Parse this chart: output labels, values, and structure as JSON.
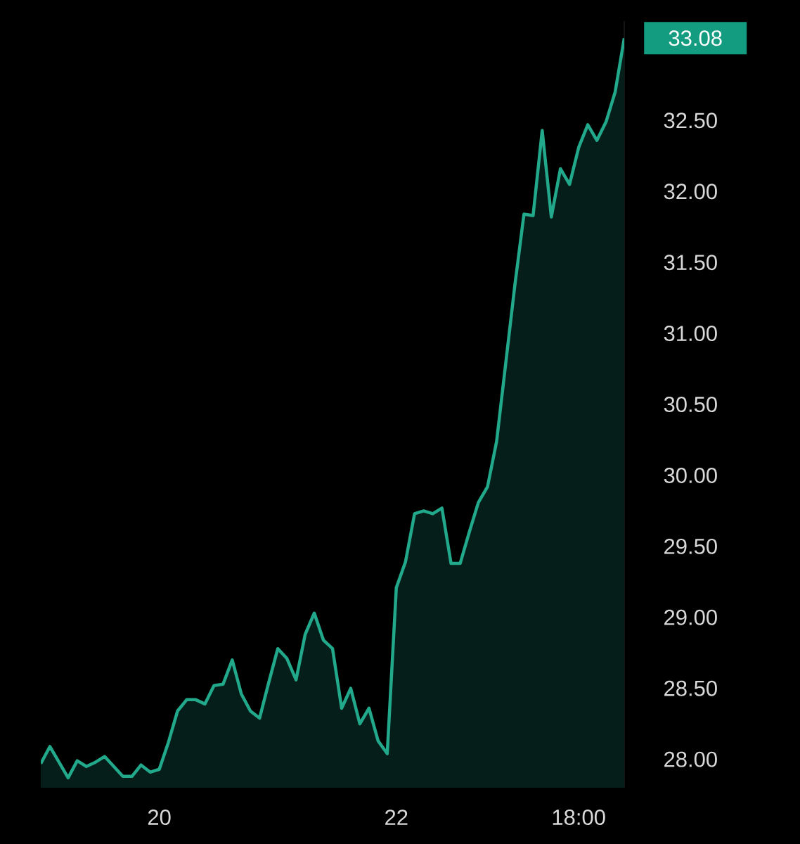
{
  "chart_data": {
    "type": "area",
    "categories": [
      null,
      null,
      null,
      null,
      null,
      null,
      null,
      null,
      null,
      null,
      null,
      null,
      null,
      "20",
      null,
      null,
      null,
      null,
      null,
      null,
      null,
      null,
      null,
      null,
      null,
      null,
      null,
      null,
      null,
      null,
      null,
      null,
      null,
      null,
      null,
      null,
      null,
      null,
      null,
      "22",
      null,
      null,
      null,
      null,
      null,
      null,
      null,
      null,
      null,
      null,
      null,
      null,
      null,
      null,
      null,
      null,
      null,
      null,
      null,
      "18:00",
      null,
      null,
      null,
      null,
      null
    ],
    "series": [
      {
        "color": "#22a88a",
        "values": [
          27.97,
          28.09,
          27.98,
          27.87,
          27.99,
          27.95,
          27.98,
          28.02,
          27.95,
          27.88,
          27.88,
          27.96,
          27.91,
          27.93,
          28.12,
          28.34,
          28.42,
          28.42,
          28.39,
          28.52,
          28.53,
          28.7,
          28.46,
          28.34,
          28.29,
          28.54,
          28.78,
          28.71,
          28.56,
          28.88,
          29.03,
          28.84,
          28.78,
          28.36,
          28.5,
          28.25,
          28.36,
          28.13,
          28.04,
          29.21,
          29.39,
          29.73,
          29.75,
          29.73,
          29.77,
          29.38,
          29.38,
          29.6,
          29.81,
          29.92,
          30.24,
          30.79,
          31.34,
          31.84,
          31.83,
          32.43,
          31.82,
          32.16,
          32.05,
          32.31,
          32.47,
          32.36,
          32.49,
          32.7,
          33.08
        ]
      }
    ],
    "ylim": [
      27.8,
      33.2
    ],
    "yticks": [
      {
        "value": 28,
        "label": "28.00"
      },
      {
        "value": 28.5,
        "label": "28.50"
      },
      {
        "value": 29,
        "label": "29.00"
      },
      {
        "value": 29.5,
        "label": "29.50"
      },
      {
        "value": 30,
        "label": "30.00"
      },
      {
        "value": 30.5,
        "label": "30.50"
      },
      {
        "value": 31,
        "label": "31.00"
      },
      {
        "value": 31.5,
        "label": "31.50"
      },
      {
        "value": 32,
        "label": "32.00"
      },
      {
        "value": 32.5,
        "label": "32.50"
      }
    ],
    "annotations": [
      "33.08"
    ],
    "line_style": "solid"
  }
}
